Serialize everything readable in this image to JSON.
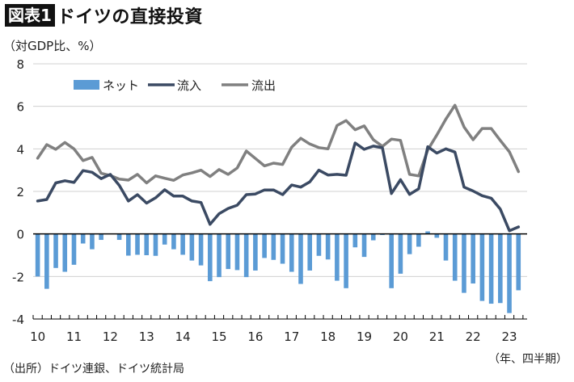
{
  "header": {
    "badge": "図表1",
    "title": "ドイツの直接投資"
  },
  "unit_label": "（対GDP比、%）",
  "source": "（出所）ドイツ連銀、ドイツ統計局",
  "period_label": "（年、四半期）",
  "colors": {
    "net": "#5b9bd5",
    "inflow": "#3b4a63",
    "outflow": "#808080",
    "grid": "#d0d0d0",
    "axis": "#000000"
  },
  "chart_data": {
    "type": "bar+line",
    "title": "ドイツの直接投資",
    "ylabel": "（対GDP比、%）",
    "xlabel": "（年、四半期）",
    "ylim": [
      -4,
      8
    ],
    "yticks": [
      8,
      6,
      4,
      2,
      0,
      -2,
      -4
    ],
    "ytick_labels": [
      "8",
      "6",
      "4",
      "2",
      "0",
      "-2",
      "-4"
    ],
    "grid": true,
    "legend_position": "top-left",
    "x_start": "2010Q1",
    "x_end": "2023Q2",
    "xtick_labels": [
      "10",
      "11",
      "12",
      "13",
      "14",
      "15",
      "16",
      "17",
      "18",
      "19",
      "20",
      "21",
      "22",
      "23"
    ],
    "series": [
      {
        "name": "ネット",
        "kind": "bar",
        "values": [
          -2.0,
          -2.58,
          -1.6,
          -1.78,
          -1.45,
          -0.45,
          -0.72,
          -0.28,
          0.0,
          -0.28,
          -1.02,
          -0.98,
          -1.0,
          -1.03,
          -0.5,
          -0.72,
          -0.98,
          -1.25,
          -1.48,
          -2.22,
          -2.03,
          -1.65,
          -1.7,
          -2.03,
          -1.72,
          -1.13,
          -1.22,
          -1.4,
          -1.78,
          -2.35,
          -1.72,
          -1.03,
          -1.2,
          -2.2,
          -2.55,
          -0.63,
          -1.08,
          -0.3,
          -0.05,
          -2.55,
          -1.87,
          -0.95,
          -0.6,
          0.12,
          -0.18,
          -1.25,
          -2.2,
          -2.77,
          -2.33,
          -3.15,
          -3.28,
          -3.25,
          -3.72,
          -2.65
        ]
      },
      {
        "name": "流入",
        "kind": "line",
        "values": [
          1.55,
          1.62,
          2.4,
          2.5,
          2.42,
          2.98,
          2.9,
          2.6,
          2.8,
          2.28,
          1.55,
          1.85,
          1.45,
          1.7,
          2.08,
          1.78,
          1.78,
          1.55,
          1.48,
          0.45,
          0.95,
          1.2,
          1.35,
          1.85,
          1.88,
          2.07,
          2.07,
          1.85,
          2.3,
          2.2,
          2.45,
          3.0,
          2.77,
          2.8,
          2.76,
          4.28,
          3.98,
          4.13,
          4.05,
          1.9,
          2.55,
          1.86,
          2.12,
          4.1,
          3.8,
          4.0,
          3.85,
          2.2,
          2.02,
          1.8,
          1.68,
          1.17,
          0.15,
          0.33
        ]
      },
      {
        "name": "流出",
        "kind": "line",
        "values": [
          3.56,
          4.2,
          3.98,
          4.3,
          4.0,
          3.45,
          3.6,
          2.85,
          2.75,
          2.58,
          2.53,
          2.8,
          2.4,
          2.73,
          2.62,
          2.52,
          2.77,
          2.87,
          3.0,
          2.7,
          3.03,
          2.8,
          3.1,
          3.9,
          3.55,
          3.2,
          3.33,
          3.27,
          4.08,
          4.5,
          4.23,
          4.06,
          4.0,
          5.1,
          5.33,
          4.9,
          5.08,
          4.43,
          4.12,
          4.46,
          4.4,
          2.8,
          2.73,
          3.95,
          4.65,
          5.4,
          6.05,
          5.03,
          4.43,
          4.96,
          4.96,
          4.4,
          3.86,
          2.93
        ]
      }
    ]
  }
}
